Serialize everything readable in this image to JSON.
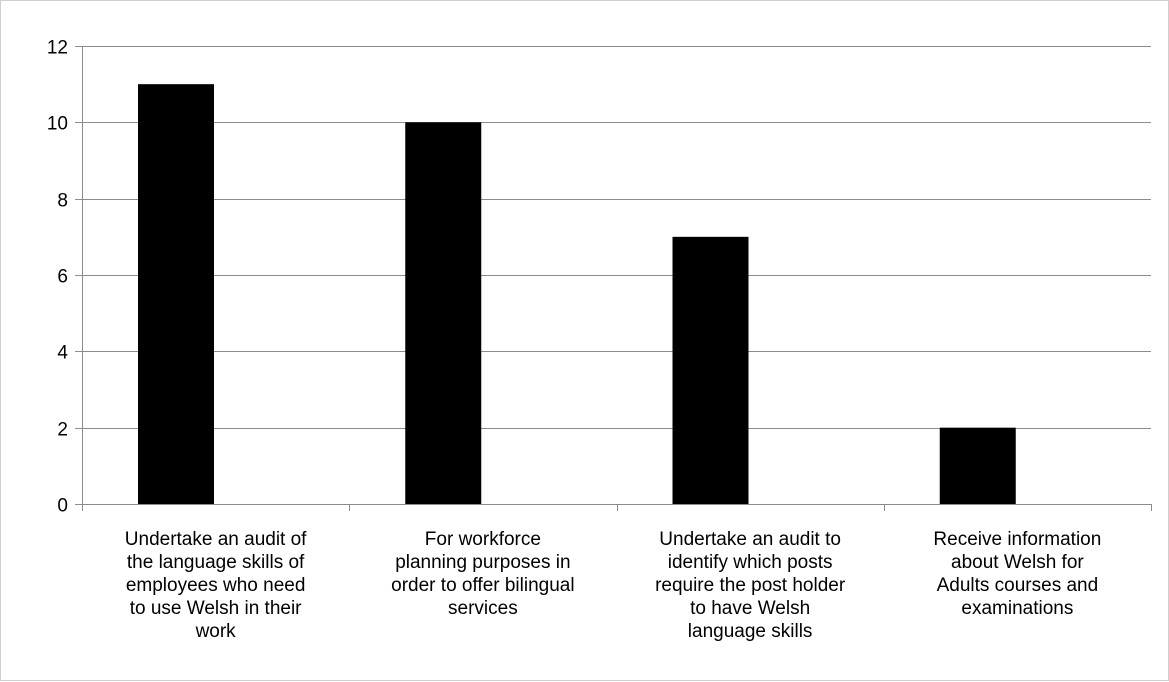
{
  "chart_data": {
    "type": "bar",
    "title": "",
    "xlabel": "",
    "ylabel": "",
    "categories": [
      [
        "Undertake an audit of",
        "the language skills of",
        "employees who need",
        "to use Welsh in their",
        "work"
      ],
      [
        "For workforce",
        "planning purposes in",
        "order to offer bilingual",
        "services"
      ],
      [
        "Undertake an audit to",
        "identify which posts",
        "require the post holder",
        "to have Welsh",
        "language skills"
      ],
      [
        "Receive information",
        "about Welsh for",
        "Adults courses and",
        "examinations"
      ]
    ],
    "values": [
      11,
      10,
      7,
      2
    ],
    "ylim": [
      0,
      12
    ],
    "yticks": [
      0,
      2,
      4,
      6,
      8,
      10,
      12
    ],
    "grid": true,
    "legend": "none",
    "bar_color": "#000000",
    "grid_color": "#8c8c8c"
  }
}
